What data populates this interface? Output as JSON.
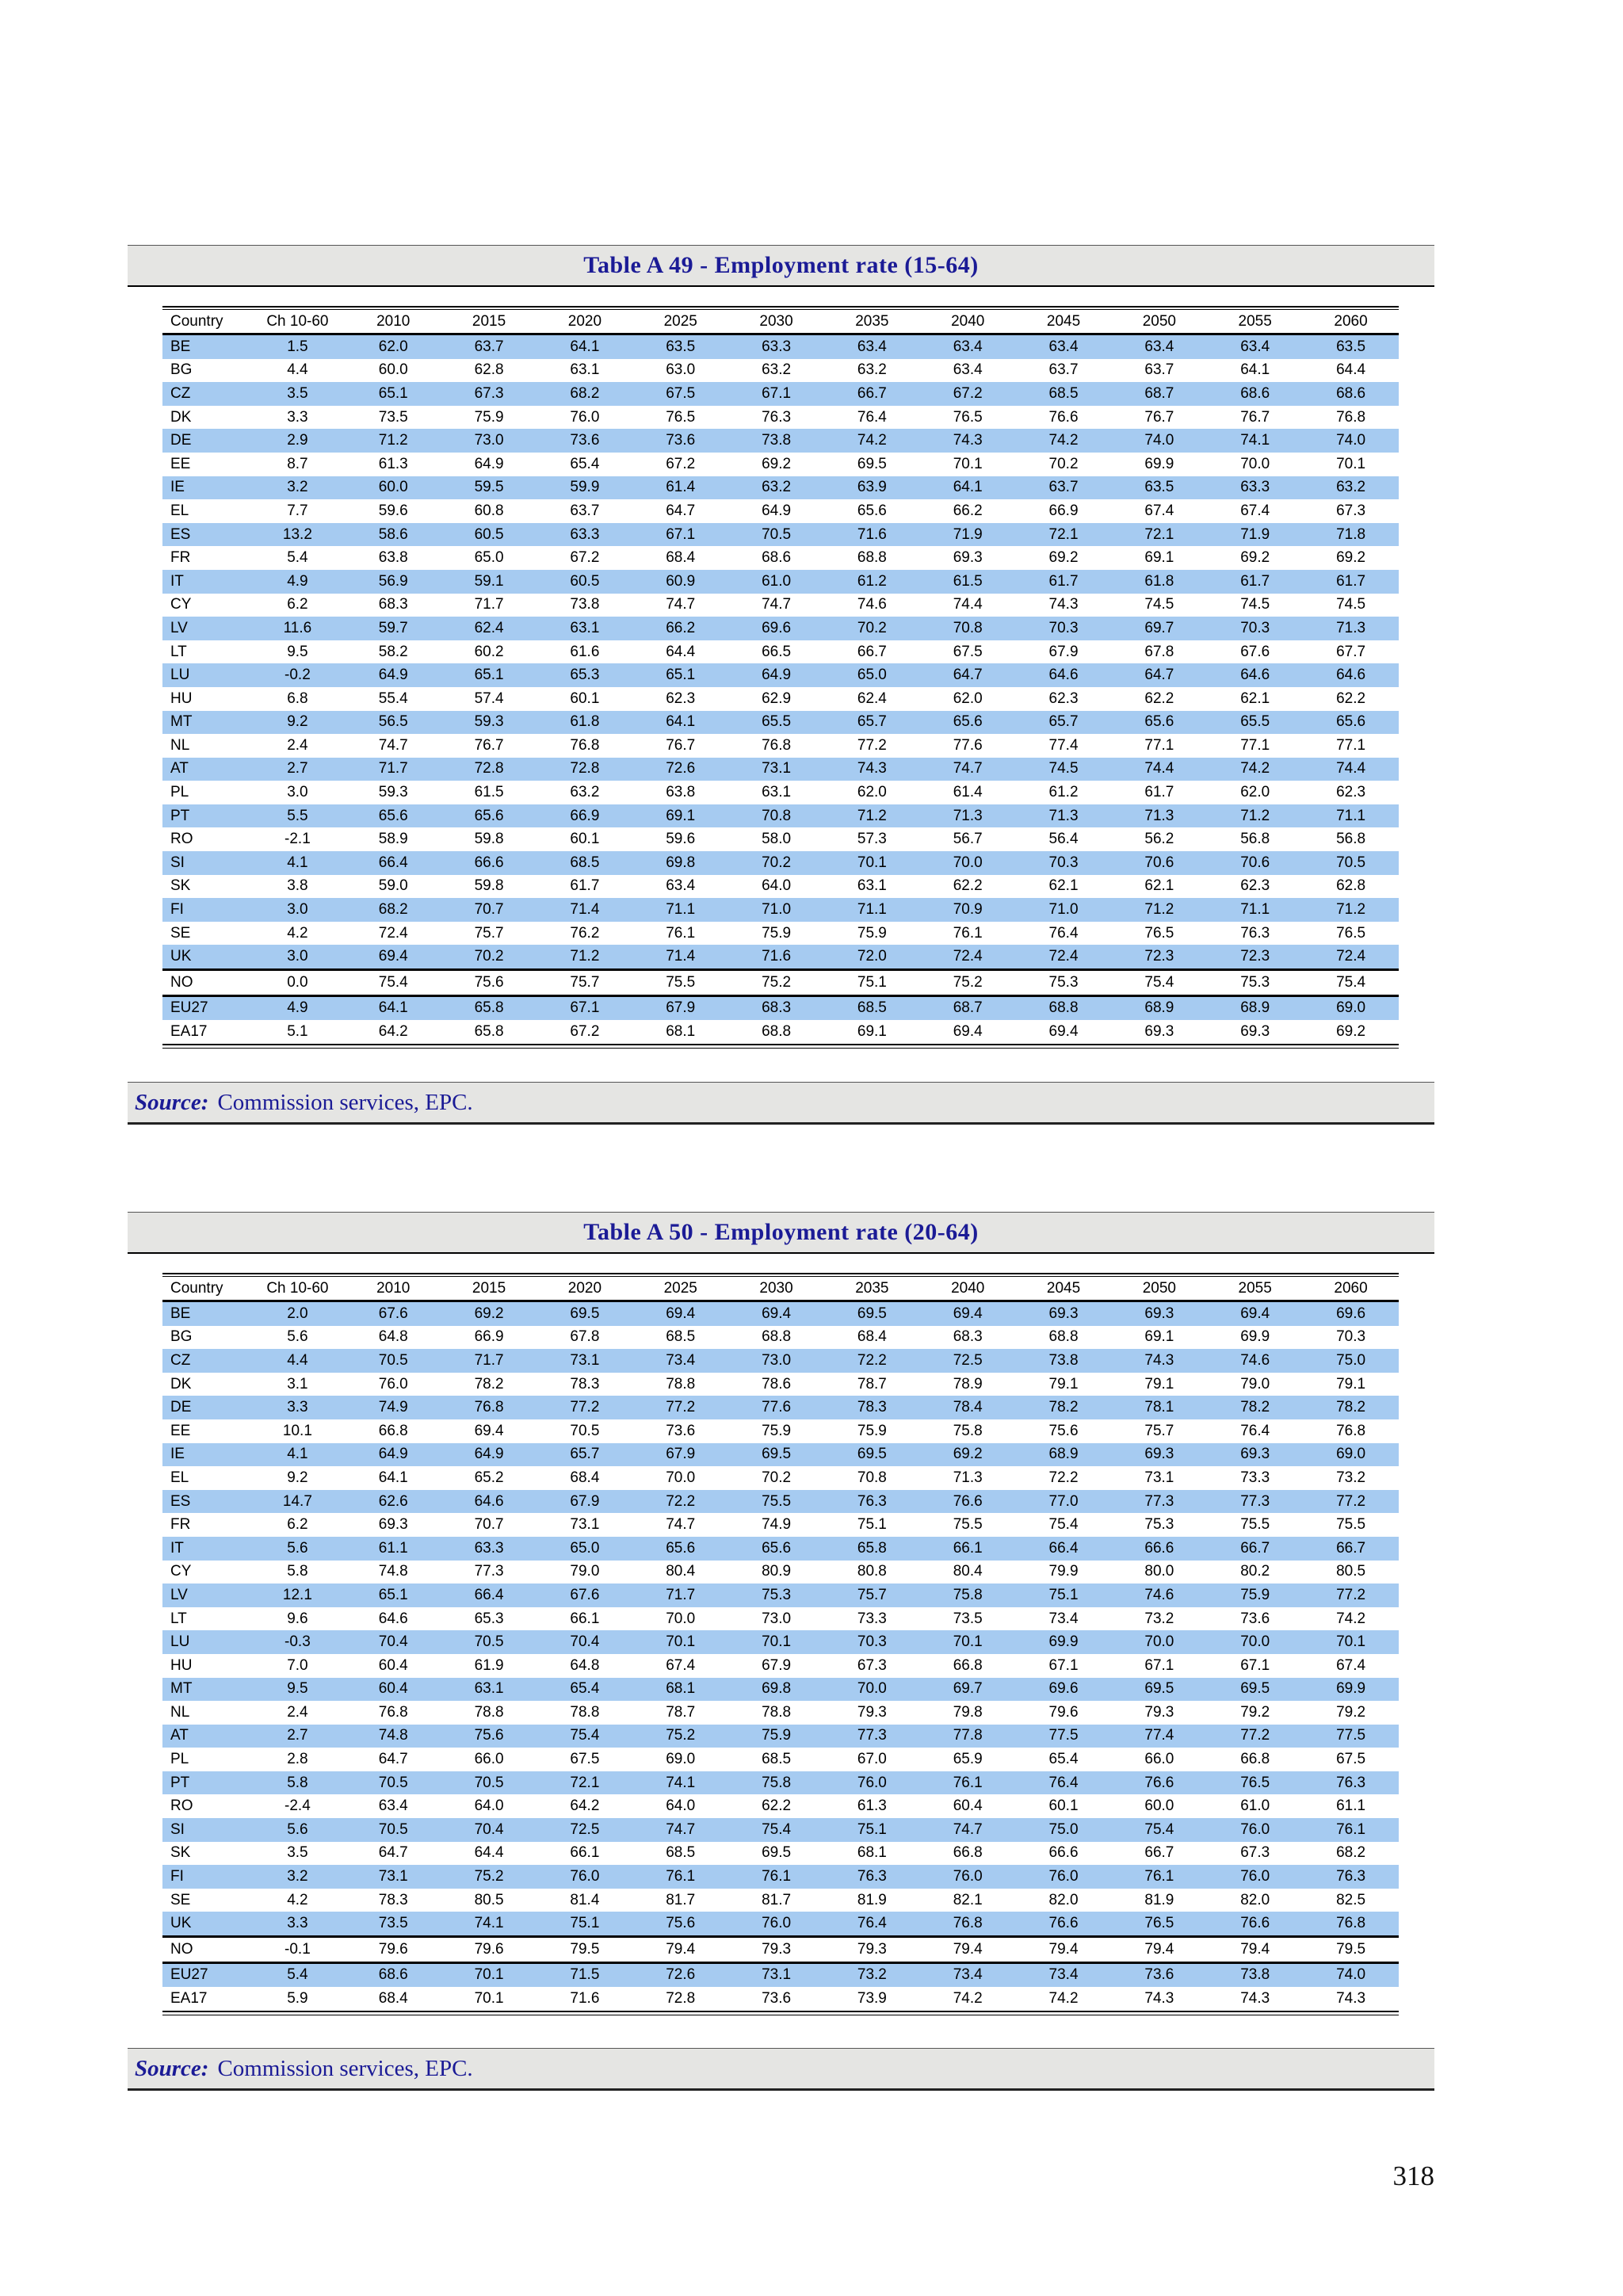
{
  "page": {
    "number": "318"
  },
  "colors": {
    "stripe_blue": "#A6CBF1",
    "bar_gray": "#E5E5E3",
    "title_navy": "#1B1B96"
  },
  "tables": [
    {
      "title": "Table A 49 - Employment rate (15-64)",
      "source_label": "Source:",
      "source_text": "Commission services, EPC.",
      "columns": [
        "Country",
        "Ch 10-60",
        "2010",
        "2015",
        "2020",
        "2025",
        "2030",
        "2035",
        "2040",
        "2045",
        "2050",
        "2055",
        "2060"
      ],
      "separator_before": [
        "NO",
        "EU27"
      ],
      "rows": [
        [
          "BE",
          "1.5",
          "62.0",
          "63.7",
          "64.1",
          "63.5",
          "63.3",
          "63.4",
          "63.4",
          "63.4",
          "63.4",
          "63.4",
          "63.5"
        ],
        [
          "BG",
          "4.4",
          "60.0",
          "62.8",
          "63.1",
          "63.0",
          "63.2",
          "63.2",
          "63.4",
          "63.7",
          "63.7",
          "64.1",
          "64.4"
        ],
        [
          "CZ",
          "3.5",
          "65.1",
          "67.3",
          "68.2",
          "67.5",
          "67.1",
          "66.7",
          "67.2",
          "68.5",
          "68.7",
          "68.6",
          "68.6"
        ],
        [
          "DK",
          "3.3",
          "73.5",
          "75.9",
          "76.0",
          "76.5",
          "76.3",
          "76.4",
          "76.5",
          "76.6",
          "76.7",
          "76.7",
          "76.8"
        ],
        [
          "DE",
          "2.9",
          "71.2",
          "73.0",
          "73.6",
          "73.6",
          "73.8",
          "74.2",
          "74.3",
          "74.2",
          "74.0",
          "74.1",
          "74.0"
        ],
        [
          "EE",
          "8.7",
          "61.3",
          "64.9",
          "65.4",
          "67.2",
          "69.2",
          "69.5",
          "70.1",
          "70.2",
          "69.9",
          "70.0",
          "70.1"
        ],
        [
          "IE",
          "3.2",
          "60.0",
          "59.5",
          "59.9",
          "61.4",
          "63.2",
          "63.9",
          "64.1",
          "63.7",
          "63.5",
          "63.3",
          "63.2"
        ],
        [
          "EL",
          "7.7",
          "59.6",
          "60.8",
          "63.7",
          "64.7",
          "64.9",
          "65.6",
          "66.2",
          "66.9",
          "67.4",
          "67.4",
          "67.3"
        ],
        [
          "ES",
          "13.2",
          "58.6",
          "60.5",
          "63.3",
          "67.1",
          "70.5",
          "71.6",
          "71.9",
          "72.1",
          "72.1",
          "71.9",
          "71.8"
        ],
        [
          "FR",
          "5.4",
          "63.8",
          "65.0",
          "67.2",
          "68.4",
          "68.6",
          "68.8",
          "69.3",
          "69.2",
          "69.1",
          "69.2",
          "69.2"
        ],
        [
          "IT",
          "4.9",
          "56.9",
          "59.1",
          "60.5",
          "60.9",
          "61.0",
          "61.2",
          "61.5",
          "61.7",
          "61.8",
          "61.7",
          "61.7"
        ],
        [
          "CY",
          "6.2",
          "68.3",
          "71.7",
          "73.8",
          "74.7",
          "74.7",
          "74.6",
          "74.4",
          "74.3",
          "74.5",
          "74.5",
          "74.5"
        ],
        [
          "LV",
          "11.6",
          "59.7",
          "62.4",
          "63.1",
          "66.2",
          "69.6",
          "70.2",
          "70.8",
          "70.3",
          "69.7",
          "70.3",
          "71.3"
        ],
        [
          "LT",
          "9.5",
          "58.2",
          "60.2",
          "61.6",
          "64.4",
          "66.5",
          "66.7",
          "67.5",
          "67.9",
          "67.8",
          "67.6",
          "67.7"
        ],
        [
          "LU",
          "-0.2",
          "64.9",
          "65.1",
          "65.3",
          "65.1",
          "64.9",
          "65.0",
          "64.7",
          "64.6",
          "64.7",
          "64.6",
          "64.6"
        ],
        [
          "HU",
          "6.8",
          "55.4",
          "57.4",
          "60.1",
          "62.3",
          "62.9",
          "62.4",
          "62.0",
          "62.3",
          "62.2",
          "62.1",
          "62.2"
        ],
        [
          "MT",
          "9.2",
          "56.5",
          "59.3",
          "61.8",
          "64.1",
          "65.5",
          "65.7",
          "65.6",
          "65.7",
          "65.6",
          "65.5",
          "65.6"
        ],
        [
          "NL",
          "2.4",
          "74.7",
          "76.7",
          "76.8",
          "76.7",
          "76.8",
          "77.2",
          "77.6",
          "77.4",
          "77.1",
          "77.1",
          "77.1"
        ],
        [
          "AT",
          "2.7",
          "71.7",
          "72.8",
          "72.8",
          "72.6",
          "73.1",
          "74.3",
          "74.7",
          "74.5",
          "74.4",
          "74.2",
          "74.4"
        ],
        [
          "PL",
          "3.0",
          "59.3",
          "61.5",
          "63.2",
          "63.8",
          "63.1",
          "62.0",
          "61.4",
          "61.2",
          "61.7",
          "62.0",
          "62.3"
        ],
        [
          "PT",
          "5.5",
          "65.6",
          "65.6",
          "66.9",
          "69.1",
          "70.8",
          "71.2",
          "71.3",
          "71.3",
          "71.3",
          "71.2",
          "71.1"
        ],
        [
          "RO",
          "-2.1",
          "58.9",
          "59.8",
          "60.1",
          "59.6",
          "58.0",
          "57.3",
          "56.7",
          "56.4",
          "56.2",
          "56.8",
          "56.8"
        ],
        [
          "SI",
          "4.1",
          "66.4",
          "66.6",
          "68.5",
          "69.8",
          "70.2",
          "70.1",
          "70.0",
          "70.3",
          "70.6",
          "70.6",
          "70.5"
        ],
        [
          "SK",
          "3.8",
          "59.0",
          "59.8",
          "61.7",
          "63.4",
          "64.0",
          "63.1",
          "62.2",
          "62.1",
          "62.1",
          "62.3",
          "62.8"
        ],
        [
          "FI",
          "3.0",
          "68.2",
          "70.7",
          "71.4",
          "71.1",
          "71.0",
          "71.1",
          "70.9",
          "71.0",
          "71.2",
          "71.1",
          "71.2"
        ],
        [
          "SE",
          "4.2",
          "72.4",
          "75.7",
          "76.2",
          "76.1",
          "75.9",
          "75.9",
          "76.1",
          "76.4",
          "76.5",
          "76.3",
          "76.5"
        ],
        [
          "UK",
          "3.0",
          "69.4",
          "70.2",
          "71.2",
          "71.4",
          "71.6",
          "72.0",
          "72.4",
          "72.4",
          "72.3",
          "72.3",
          "72.4"
        ],
        [
          "NO",
          "0.0",
          "75.4",
          "75.6",
          "75.7",
          "75.5",
          "75.2",
          "75.1",
          "75.2",
          "75.3",
          "75.4",
          "75.3",
          "75.4"
        ],
        [
          "EU27",
          "4.9",
          "64.1",
          "65.8",
          "67.1",
          "67.9",
          "68.3",
          "68.5",
          "68.7",
          "68.8",
          "68.9",
          "68.9",
          "69.0"
        ],
        [
          "EA17",
          "5.1",
          "64.2",
          "65.8",
          "67.2",
          "68.1",
          "68.8",
          "69.1",
          "69.4",
          "69.4",
          "69.3",
          "69.3",
          "69.2"
        ]
      ]
    },
    {
      "title": "Table A 50 - Employment rate (20-64)",
      "source_label": "Source:",
      "source_text": "Commission services, EPC.",
      "columns": [
        "Country",
        "Ch 10-60",
        "2010",
        "2015",
        "2020",
        "2025",
        "2030",
        "2035",
        "2040",
        "2045",
        "2050",
        "2055",
        "2060"
      ],
      "separator_before": [
        "NO",
        "EU27"
      ],
      "rows": [
        [
          "BE",
          "2.0",
          "67.6",
          "69.2",
          "69.5",
          "69.4",
          "69.4",
          "69.5",
          "69.4",
          "69.3",
          "69.3",
          "69.4",
          "69.6"
        ],
        [
          "BG",
          "5.6",
          "64.8",
          "66.9",
          "67.8",
          "68.5",
          "68.8",
          "68.4",
          "68.3",
          "68.8",
          "69.1",
          "69.9",
          "70.3"
        ],
        [
          "CZ",
          "4.4",
          "70.5",
          "71.7",
          "73.1",
          "73.4",
          "73.0",
          "72.2",
          "72.5",
          "73.8",
          "74.3",
          "74.6",
          "75.0"
        ],
        [
          "DK",
          "3.1",
          "76.0",
          "78.2",
          "78.3",
          "78.8",
          "78.6",
          "78.7",
          "78.9",
          "79.1",
          "79.1",
          "79.0",
          "79.1"
        ],
        [
          "DE",
          "3.3",
          "74.9",
          "76.8",
          "77.2",
          "77.2",
          "77.6",
          "78.3",
          "78.4",
          "78.2",
          "78.1",
          "78.2",
          "78.2"
        ],
        [
          "EE",
          "10.1",
          "66.8",
          "69.4",
          "70.5",
          "73.6",
          "75.9",
          "75.9",
          "75.8",
          "75.6",
          "75.7",
          "76.4",
          "76.8"
        ],
        [
          "IE",
          "4.1",
          "64.9",
          "64.9",
          "65.7",
          "67.9",
          "69.5",
          "69.5",
          "69.2",
          "68.9",
          "69.3",
          "69.3",
          "69.0"
        ],
        [
          "EL",
          "9.2",
          "64.1",
          "65.2",
          "68.4",
          "70.0",
          "70.2",
          "70.8",
          "71.3",
          "72.2",
          "73.1",
          "73.3",
          "73.2"
        ],
        [
          "ES",
          "14.7",
          "62.6",
          "64.6",
          "67.9",
          "72.2",
          "75.5",
          "76.3",
          "76.6",
          "77.0",
          "77.3",
          "77.3",
          "77.2"
        ],
        [
          "FR",
          "6.2",
          "69.3",
          "70.7",
          "73.1",
          "74.7",
          "74.9",
          "75.1",
          "75.5",
          "75.4",
          "75.3",
          "75.5",
          "75.5"
        ],
        [
          "IT",
          "5.6",
          "61.1",
          "63.3",
          "65.0",
          "65.6",
          "65.6",
          "65.8",
          "66.1",
          "66.4",
          "66.6",
          "66.7",
          "66.7"
        ],
        [
          "CY",
          "5.8",
          "74.8",
          "77.3",
          "79.0",
          "80.4",
          "80.9",
          "80.8",
          "80.4",
          "79.9",
          "80.0",
          "80.2",
          "80.5"
        ],
        [
          "LV",
          "12.1",
          "65.1",
          "66.4",
          "67.6",
          "71.7",
          "75.3",
          "75.7",
          "75.8",
          "75.1",
          "74.6",
          "75.9",
          "77.2"
        ],
        [
          "LT",
          "9.6",
          "64.6",
          "65.3",
          "66.1",
          "70.0",
          "73.0",
          "73.3",
          "73.5",
          "73.4",
          "73.2",
          "73.6",
          "74.2"
        ],
        [
          "LU",
          "-0.3",
          "70.4",
          "70.5",
          "70.4",
          "70.1",
          "70.1",
          "70.3",
          "70.1",
          "69.9",
          "70.0",
          "70.0",
          "70.1"
        ],
        [
          "HU",
          "7.0",
          "60.4",
          "61.9",
          "64.8",
          "67.4",
          "67.9",
          "67.3",
          "66.8",
          "67.1",
          "67.1",
          "67.1",
          "67.4"
        ],
        [
          "MT",
          "9.5",
          "60.4",
          "63.1",
          "65.4",
          "68.1",
          "69.8",
          "70.0",
          "69.7",
          "69.6",
          "69.5",
          "69.5",
          "69.9"
        ],
        [
          "NL",
          "2.4",
          "76.8",
          "78.8",
          "78.8",
          "78.7",
          "78.8",
          "79.3",
          "79.8",
          "79.6",
          "79.3",
          "79.2",
          "79.2"
        ],
        [
          "AT",
          "2.7",
          "74.8",
          "75.6",
          "75.4",
          "75.2",
          "75.9",
          "77.3",
          "77.8",
          "77.5",
          "77.4",
          "77.2",
          "77.5"
        ],
        [
          "PL",
          "2.8",
          "64.7",
          "66.0",
          "67.5",
          "69.0",
          "68.5",
          "67.0",
          "65.9",
          "65.4",
          "66.0",
          "66.8",
          "67.5"
        ],
        [
          "PT",
          "5.8",
          "70.5",
          "70.5",
          "72.1",
          "74.1",
          "75.8",
          "76.0",
          "76.1",
          "76.4",
          "76.6",
          "76.5",
          "76.3"
        ],
        [
          "RO",
          "-2.4",
          "63.4",
          "64.0",
          "64.2",
          "64.0",
          "62.2",
          "61.3",
          "60.4",
          "60.1",
          "60.0",
          "61.0",
          "61.1"
        ],
        [
          "SI",
          "5.6",
          "70.5",
          "70.4",
          "72.5",
          "74.7",
          "75.4",
          "75.1",
          "74.7",
          "75.0",
          "75.4",
          "76.0",
          "76.1"
        ],
        [
          "SK",
          "3.5",
          "64.7",
          "64.4",
          "66.1",
          "68.5",
          "69.5",
          "68.1",
          "66.8",
          "66.6",
          "66.7",
          "67.3",
          "68.2"
        ],
        [
          "FI",
          "3.2",
          "73.1",
          "75.2",
          "76.0",
          "76.1",
          "76.1",
          "76.3",
          "76.0",
          "76.0",
          "76.1",
          "76.0",
          "76.3"
        ],
        [
          "SE",
          "4.2",
          "78.3",
          "80.5",
          "81.4",
          "81.7",
          "81.7",
          "81.9",
          "82.1",
          "82.0",
          "81.9",
          "82.0",
          "82.5"
        ],
        [
          "UK",
          "3.3",
          "73.5",
          "74.1",
          "75.1",
          "75.6",
          "76.0",
          "76.4",
          "76.8",
          "76.6",
          "76.5",
          "76.6",
          "76.8"
        ],
        [
          "NO",
          "-0.1",
          "79.6",
          "79.6",
          "79.5",
          "79.4",
          "79.3",
          "79.3",
          "79.4",
          "79.4",
          "79.4",
          "79.4",
          "79.5"
        ],
        [
          "EU27",
          "5.4",
          "68.6",
          "70.1",
          "71.5",
          "72.6",
          "73.1",
          "73.2",
          "73.4",
          "73.4",
          "73.6",
          "73.8",
          "74.0"
        ],
        [
          "EA17",
          "5.9",
          "68.4",
          "70.1",
          "71.6",
          "72.8",
          "73.6",
          "73.9",
          "74.2",
          "74.2",
          "74.3",
          "74.3",
          "74.3"
        ]
      ]
    }
  ]
}
